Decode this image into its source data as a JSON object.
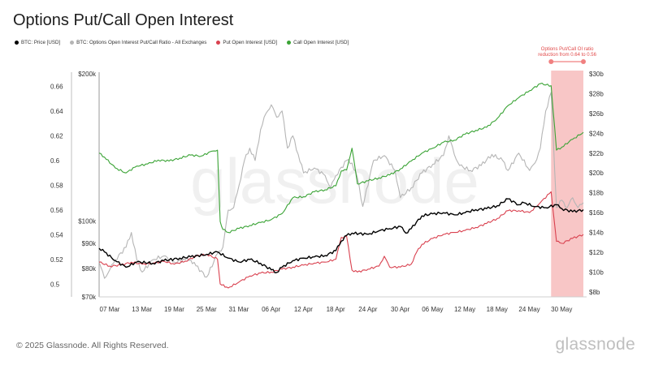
{
  "header": {
    "title": "Options Put/Call Open Interest"
  },
  "legend": [
    {
      "label": "BTC: Price [USD]",
      "color": "#000000"
    },
    {
      "label": "BTC: Options Open Interest Put/Call Ratio - All Exchanges",
      "color": "#b5b5b5"
    },
    {
      "label": "Put Open Interest [USD]",
      "color": "#d9414f"
    },
    {
      "label": "Call Open Interest [USD]",
      "color": "#3aa335"
    }
  ],
  "footer": {
    "copyright": "© 2025 Glassnode. All Rights Reserved.",
    "brand": "glassnode"
  },
  "watermark": "glassnode",
  "chart_data": {
    "type": "line",
    "title": "Options Put/Call Open Interest",
    "x_ticks": [
      "07 Mar",
      "13 Mar",
      "19 Mar",
      "25 Mar",
      "31 Mar",
      "06 Apr",
      "12 Apr",
      "18 Apr",
      "24 Apr",
      "30 Apr",
      "06 May",
      "12 May",
      "18 May",
      "24 May",
      "30 May"
    ],
    "x_range": [
      "2025-03-07",
      "2025-06-05"
    ],
    "ratio_axis": {
      "ticks": [
        "0.66",
        "0.64",
        "0.62",
        "0.6",
        "0.58",
        "0.56",
        "0.54",
        "0.52",
        "0.5"
      ],
      "ylim": [
        0.49,
        0.67
      ]
    },
    "price_axis": {
      "ticks": [
        "$200k",
        "$100k",
        "$90k",
        "$80k",
        "$70k"
      ],
      "ylim": [
        70000,
        200000
      ],
      "scale": "log"
    },
    "oi_axis": {
      "ticks": [
        "$30b",
        "$28b",
        "$26b",
        "$24b",
        "$22b",
        "$20b",
        "$18b",
        "$16b",
        "$14b",
        "$12b",
        "$10b",
        "$8b"
      ],
      "ylim": [
        7.5,
        30
      ]
    },
    "series": [
      {
        "name": "BTC: Price [USD]",
        "axis": "price",
        "color": "#000000",
        "points": [
          [
            0,
            88000
          ],
          [
            1,
            86500
          ],
          [
            3,
            83000
          ],
          [
            5,
            80500
          ],
          [
            7,
            82500
          ],
          [
            10,
            82000
          ],
          [
            12,
            83000
          ],
          [
            15,
            84000
          ],
          [
            17,
            84500
          ],
          [
            20,
            85500
          ],
          [
            22,
            86500
          ],
          [
            24,
            84000
          ],
          [
            26,
            82500
          ],
          [
            28,
            83500
          ],
          [
            30,
            82000
          ],
          [
            32,
            79500
          ],
          [
            33,
            78500
          ],
          [
            34,
            80500
          ],
          [
            36,
            83000
          ],
          [
            38,
            84000
          ],
          [
            40,
            84500
          ],
          [
            42,
            85000
          ],
          [
            44,
            87000
          ],
          [
            45,
            91000
          ],
          [
            46,
            93500
          ],
          [
            47,
            94500
          ],
          [
            50,
            94000
          ],
          [
            52,
            95500
          ],
          [
            54,
            96500
          ],
          [
            56,
            97500
          ],
          [
            57,
            94500
          ],
          [
            58,
            96500
          ],
          [
            60,
            102500
          ],
          [
            62,
            103500
          ],
          [
            64,
            104000
          ],
          [
            66,
            103000
          ],
          [
            68,
            104000
          ],
          [
            70,
            105500
          ],
          [
            72,
            106000
          ],
          [
            74,
            107500
          ],
          [
            76,
            111000
          ],
          [
            78,
            108000
          ],
          [
            79,
            109000
          ],
          [
            81,
            107000
          ],
          [
            83,
            106500
          ],
          [
            85,
            108000
          ],
          [
            86,
            106000
          ],
          [
            88,
            104500
          ],
          [
            90,
            105500
          ]
        ]
      },
      {
        "name": "BTC: Options Open Interest Put/Call Ratio - All Exchanges",
        "axis": "ratio",
        "color": "#b5b5b5",
        "points": [
          [
            0,
            0.518
          ],
          [
            1,
            0.505
          ],
          [
            2,
            0.512
          ],
          [
            3,
            0.52
          ],
          [
            5,
            0.53
          ],
          [
            6,
            0.542
          ],
          [
            7,
            0.52
          ],
          [
            8,
            0.51
          ],
          [
            10,
            0.52
          ],
          [
            12,
            0.523
          ],
          [
            14,
            0.518
          ],
          [
            16,
            0.52
          ],
          [
            17,
            0.52
          ],
          [
            18,
            0.515
          ],
          [
            20,
            0.506
          ],
          [
            22,
            0.525
          ],
          [
            23,
            0.53
          ],
          [
            24,
            0.56
          ],
          [
            25,
            0.562
          ],
          [
            26,
            0.58
          ],
          [
            27,
            0.6
          ],
          [
            28,
            0.61
          ],
          [
            29,
            0.6
          ],
          [
            30,
            0.625
          ],
          [
            31,
            0.638
          ],
          [
            32,
            0.645
          ],
          [
            33,
            0.635
          ],
          [
            34,
            0.64
          ],
          [
            35,
            0.61
          ],
          [
            36,
            0.62
          ],
          [
            37,
            0.605
          ],
          [
            38,
            0.59
          ],
          [
            40,
            0.594
          ],
          [
            42,
            0.588
          ],
          [
            43,
            0.578
          ],
          [
            44,
            0.588
          ],
          [
            46,
            0.6
          ],
          [
            47,
            0.598
          ],
          [
            48,
            0.586
          ],
          [
            49,
            0.563
          ],
          [
            51,
            0.6
          ],
          [
            53,
            0.604
          ],
          [
            55,
            0.592
          ],
          [
            56,
            0.57
          ],
          [
            58,
            0.578
          ],
          [
            60,
            0.59
          ],
          [
            62,
            0.597
          ],
          [
            64,
            0.604
          ],
          [
            65,
            0.62
          ],
          [
            66,
            0.605
          ],
          [
            67,
            0.596
          ],
          [
            69,
            0.592
          ],
          [
            71,
            0.596
          ],
          [
            73,
            0.605
          ],
          [
            75,
            0.6
          ],
          [
            76,
            0.592
          ],
          [
            78,
            0.606
          ],
          [
            80,
            0.592
          ],
          [
            81,
            0.598
          ],
          [
            82,
            0.61
          ],
          [
            83,
            0.64
          ],
          [
            84,
            0.655
          ],
          [
            85,
            0.562
          ],
          [
            86,
            0.568
          ],
          [
            87,
            0.562
          ],
          [
            88,
            0.57
          ],
          [
            89,
            0.562
          ],
          [
            90,
            0.566
          ]
        ]
      },
      {
        "name": "Put Open Interest [USD]",
        "axis": "oi",
        "color": "#d9414f",
        "points": [
          [
            0,
            11.0
          ],
          [
            2,
            10.6
          ],
          [
            4,
            10.7
          ],
          [
            6,
            11.0
          ],
          [
            8,
            10.8
          ],
          [
            10,
            10.9
          ],
          [
            12,
            11.1
          ],
          [
            14,
            10.8
          ],
          [
            16,
            11.1
          ],
          [
            18,
            11.6
          ],
          [
            20,
            11.8
          ],
          [
            22,
            11.3
          ],
          [
            22.5,
            8.8
          ],
          [
            24,
            8.4
          ],
          [
            26,
            9.0
          ],
          [
            28,
            9.6
          ],
          [
            30,
            9.9
          ],
          [
            32,
            10.0
          ],
          [
            34,
            10.3
          ],
          [
            36,
            10.5
          ],
          [
            38,
            10.7
          ],
          [
            40,
            10.9
          ],
          [
            42,
            11.0
          ],
          [
            44,
            11.3
          ],
          [
            45,
            13.5
          ],
          [
            46,
            13.6
          ],
          [
            47,
            10.2
          ],
          [
            48,
            10.0
          ],
          [
            50,
            10.3
          ],
          [
            52,
            10.6
          ],
          [
            53,
            11.6
          ],
          [
            54,
            10.5
          ],
          [
            56,
            10.5
          ],
          [
            58,
            10.8
          ],
          [
            59,
            12.0
          ],
          [
            60,
            12.8
          ],
          [
            62,
            13.4
          ],
          [
            64,
            13.8
          ],
          [
            66,
            14.0
          ],
          [
            68,
            14.2
          ],
          [
            70,
            14.5
          ],
          [
            72,
            14.9
          ],
          [
            74,
            15.4
          ],
          [
            76,
            16.2
          ],
          [
            78,
            16.2
          ],
          [
            80,
            16.0
          ],
          [
            82,
            17.0
          ],
          [
            84,
            18.1
          ],
          [
            85,
            13.1
          ],
          [
            86,
            12.9
          ],
          [
            88,
            13.4
          ],
          [
            90,
            13.8
          ]
        ]
      },
      {
        "name": "Call Open Interest [USD]",
        "axis": "oi",
        "color": "#3aa335",
        "points": [
          [
            0,
            22.0
          ],
          [
            1,
            21.6
          ],
          [
            3,
            20.5
          ],
          [
            5,
            20.0
          ],
          [
            7,
            20.7
          ],
          [
            9,
            20.9
          ],
          [
            11,
            21.3
          ],
          [
            13,
            21.2
          ],
          [
            15,
            21.5
          ],
          [
            17,
            21.8
          ],
          [
            19,
            21.7
          ],
          [
            21,
            22.2
          ],
          [
            22,
            22.3
          ],
          [
            22.5,
            15.1
          ],
          [
            23,
            14.3
          ],
          [
            24,
            14.0
          ],
          [
            26,
            14.4
          ],
          [
            28,
            14.7
          ],
          [
            30,
            15.0
          ],
          [
            32,
            15.3
          ],
          [
            34,
            15.9
          ],
          [
            36,
            17.5
          ],
          [
            38,
            17.6
          ],
          [
            40,
            18.1
          ],
          [
            42,
            18.3
          ],
          [
            44,
            18.7
          ],
          [
            45,
            20.2
          ],
          [
            46,
            20.3
          ],
          [
            47,
            22.5
          ],
          [
            48,
            18.9
          ],
          [
            50,
            19.2
          ],
          [
            52,
            19.5
          ],
          [
            54,
            19.8
          ],
          [
            56,
            20.4
          ],
          [
            58,
            21.2
          ],
          [
            60,
            22.0
          ],
          [
            62,
            22.5
          ],
          [
            64,
            23.1
          ],
          [
            66,
            23.3
          ],
          [
            68,
            23.9
          ],
          [
            70,
            24.3
          ],
          [
            72,
            24.6
          ],
          [
            74,
            25.5
          ],
          [
            76,
            26.8
          ],
          [
            78,
            27.6
          ],
          [
            80,
            28.3
          ],
          [
            82,
            29.0
          ],
          [
            84,
            28.8
          ],
          [
            85,
            22.3
          ],
          [
            86,
            22.6
          ],
          [
            88,
            23.4
          ],
          [
            90,
            24.1
          ]
        ]
      }
    ],
    "annotation": {
      "text_line1": "Options Put/Call OI ratio",
      "text_line2": "reduction from 0.64 to 0.56",
      "x_start": 84,
      "x_end": 90,
      "color": "#f08080"
    }
  }
}
